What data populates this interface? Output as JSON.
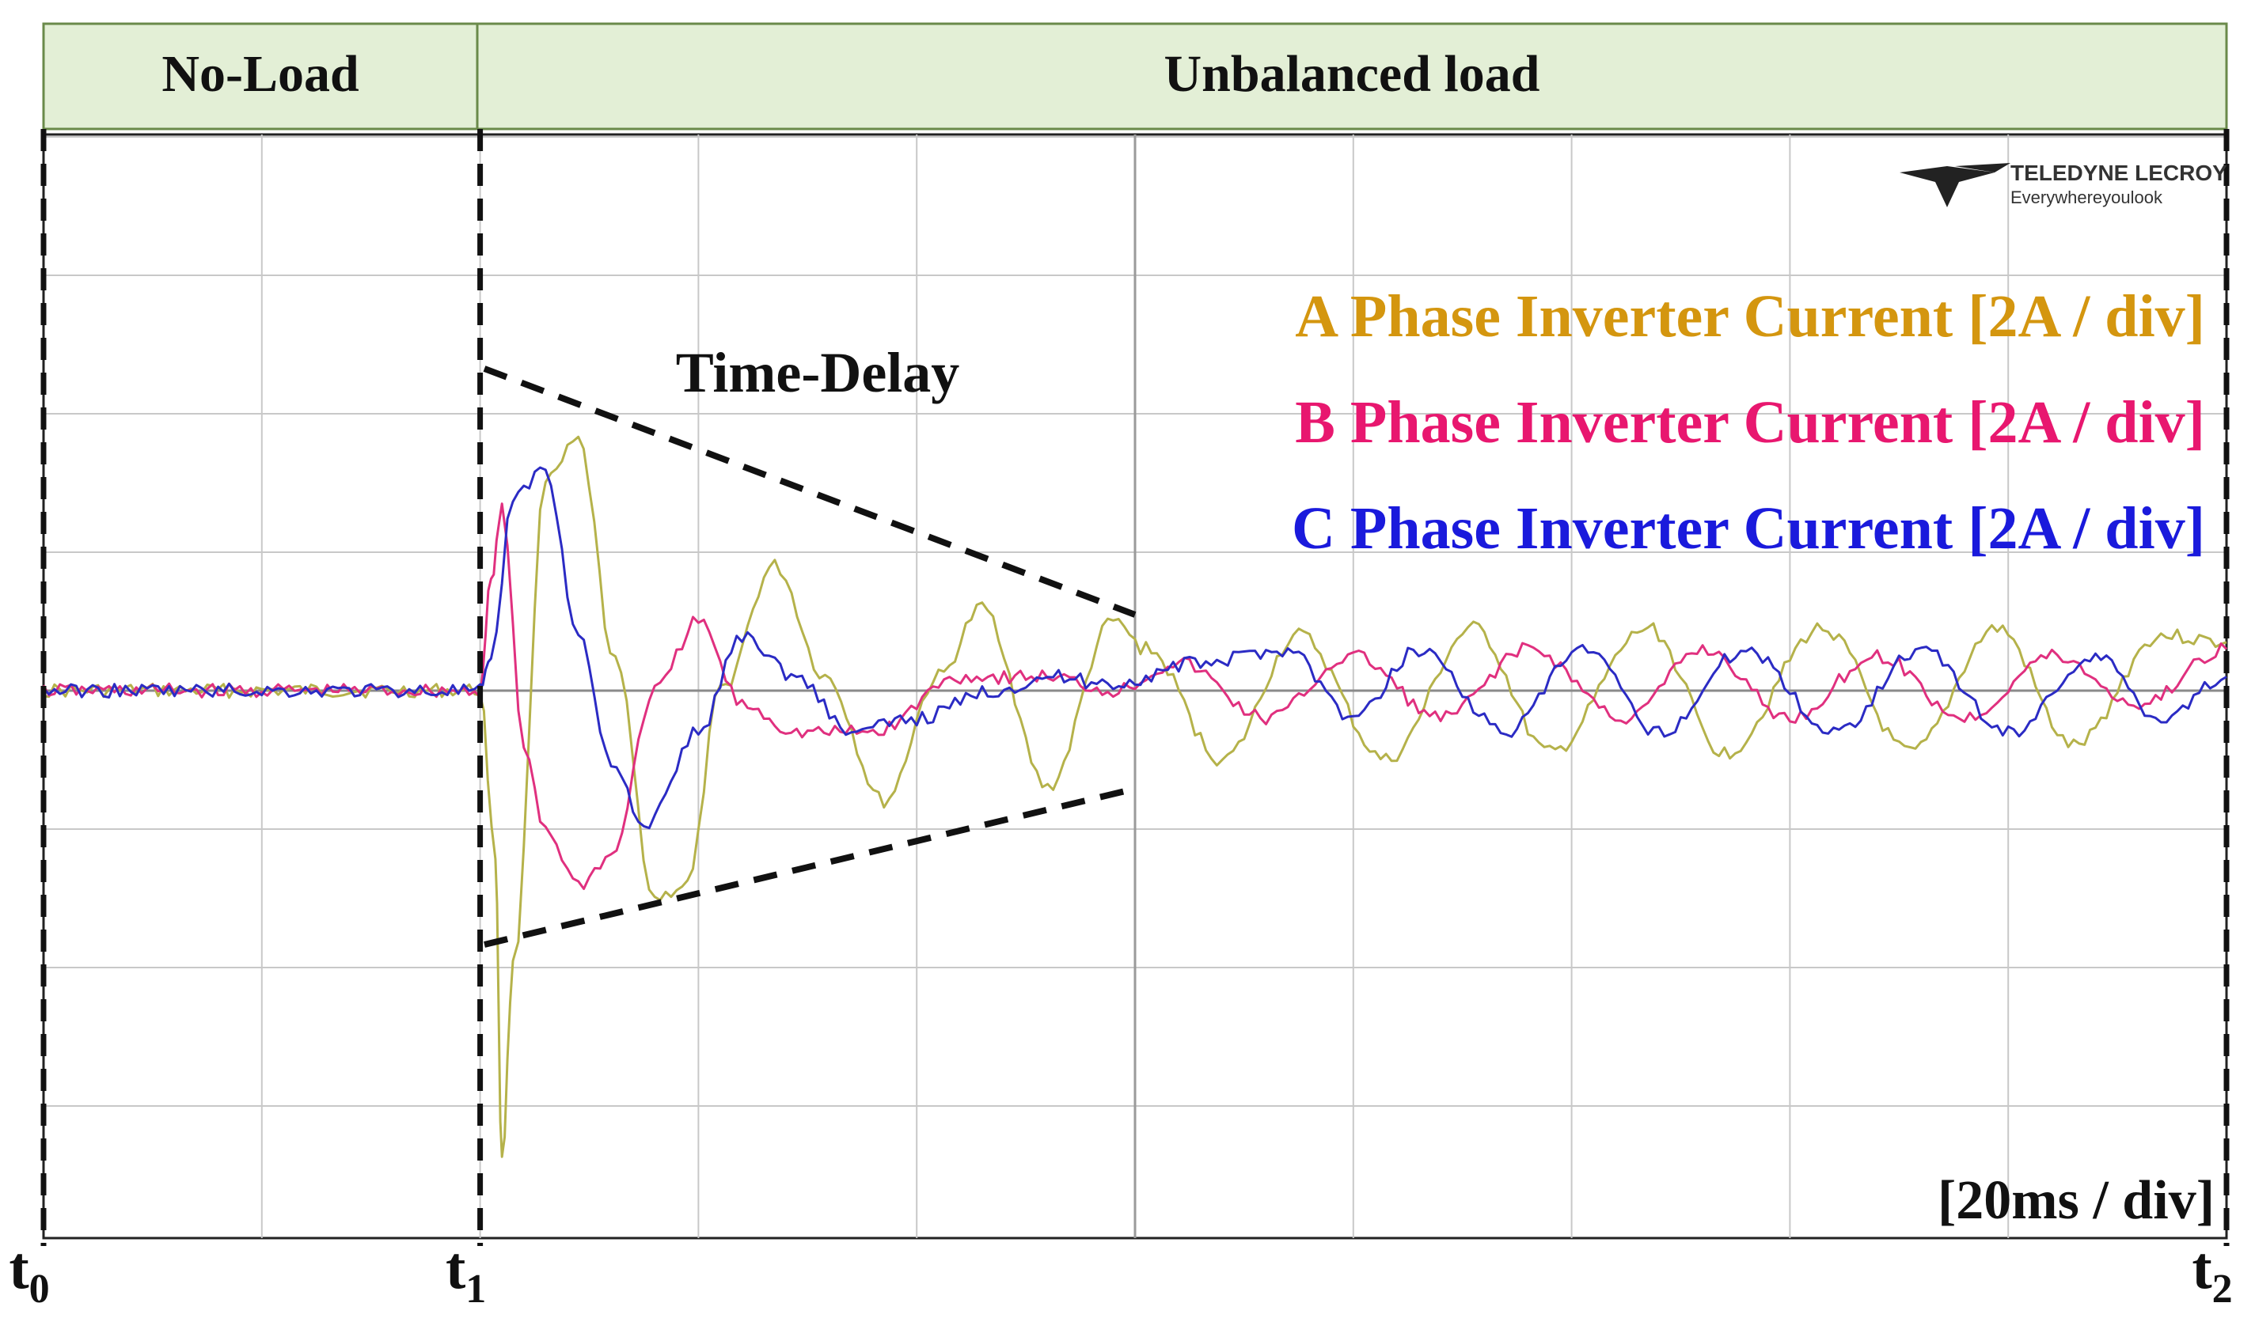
{
  "header": {
    "left_label": "No-Load",
    "right_label": "Unbalanced load",
    "fill_color": "#e3efd6",
    "border_color": "#6a8a4a"
  },
  "logo": {
    "brand": "TELEDYNE LECROY",
    "tagline": "Everywhereyoulook"
  },
  "chart_data": {
    "type": "line",
    "title": "",
    "time_scale": "[20ms / div]",
    "x_divisions": 10,
    "y_divisions": 8,
    "xlim_div": [
      0,
      10
    ],
    "ylim_div": [
      -4,
      4
    ],
    "grid": true,
    "annotation": "Time-Delay",
    "markers": [
      {
        "label_base": "t",
        "label_sub": "0",
        "x_div": 0
      },
      {
        "label_base": "t",
        "label_sub": "1",
        "x_div": 2
      },
      {
        "label_base": "t",
        "label_sub": "2",
        "x_div": 10
      }
    ],
    "legend_position": "top-right",
    "series": [
      {
        "name": "A Phase Inverter Current [2A / div]",
        "color": "#d4960f",
        "trace_color": "#b5b24a",
        "amplitude_a_div": 1.2,
        "initial_peak_div": -3.4,
        "x_div": [
          0,
          0.5,
          1.0,
          1.5,
          2.0,
          2.07,
          2.1,
          2.15,
          2.3,
          2.45,
          2.62,
          2.8,
          2.95,
          3.1,
          3.35,
          3.58,
          3.85,
          4.1,
          4.3,
          4.6,
          4.9,
          5.05,
          5.4,
          5.75,
          6.15,
          6.55,
          6.9,
          7.35,
          7.7,
          8.15,
          8.55,
          8.95,
          9.3,
          9.7,
          10.0
        ],
        "y_div": [
          0,
          0,
          0,
          0,
          0,
          -1.2,
          -3.4,
          -2.0,
          1.5,
          1.8,
          0.2,
          -1.5,
          -1.4,
          0.0,
          0.9,
          0.1,
          -0.8,
          0.1,
          0.6,
          -0.7,
          0.5,
          0.3,
          -0.5,
          0.4,
          -0.5,
          0.45,
          -0.45,
          0.45,
          -0.45,
          0.45,
          -0.45,
          0.45,
          -0.4,
          0.4,
          0.35
        ]
      },
      {
        "name": "B Phase Inverter Current [2A / div]",
        "color": "#e8176f",
        "trace_color": "#e0307f",
        "amplitude_a_div": 0.4,
        "initial_peak_div": 1.3,
        "x_div": [
          0,
          0.5,
          1.0,
          1.5,
          2.0,
          2.05,
          2.1,
          2.2,
          2.3,
          2.45,
          2.6,
          2.8,
          3.0,
          3.2,
          3.45,
          3.8,
          4.2,
          4.6,
          4.9,
          5.2,
          5.6,
          6.0,
          6.4,
          6.8,
          7.25,
          7.6,
          8.0,
          8.4,
          8.8,
          9.2,
          9.6,
          10.0
        ],
        "y_div": [
          0,
          0,
          0,
          0,
          0,
          0.8,
          1.3,
          -0.4,
          -1.0,
          -1.4,
          -1.2,
          0.0,
          0.5,
          -0.1,
          -0.3,
          -0.3,
          0.1,
          0.1,
          0.0,
          0.2,
          -0.2,
          0.25,
          -0.2,
          0.3,
          -0.2,
          0.3,
          -0.2,
          0.25,
          -0.2,
          0.25,
          -0.1,
          0.3
        ]
      },
      {
        "name": "C Phase Inverter Current [2A / div]",
        "color": "#1a1adc",
        "trace_color": "#2b2bc4",
        "amplitude_a_div": 0.3,
        "initial_peak_div": 1.6,
        "x_div": [
          0,
          0.5,
          1.0,
          1.5,
          2.0,
          2.05,
          2.15,
          2.3,
          2.45,
          2.6,
          2.75,
          3.0,
          3.2,
          3.45,
          3.7,
          4.0,
          4.35,
          4.6,
          4.9,
          5.3,
          5.7,
          6.0,
          6.3,
          6.7,
          7.05,
          7.4,
          7.8,
          8.2,
          8.6,
          9.0,
          9.4,
          9.7,
          10.0
        ],
        "y_div": [
          0,
          0,
          0,
          0,
          0,
          0.2,
          1.4,
          1.6,
          0.4,
          -0.5,
          -1.0,
          -0.3,
          0.4,
          0.1,
          -0.3,
          -0.2,
          0.0,
          0.1,
          0.05,
          0.2,
          0.3,
          -0.2,
          0.3,
          -0.3,
          0.3,
          -0.3,
          0.3,
          -0.3,
          0.3,
          -0.3,
          0.25,
          -0.2,
          0.1
        ]
      }
    ]
  }
}
